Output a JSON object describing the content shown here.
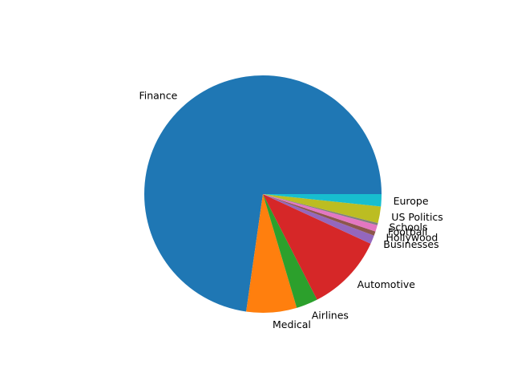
{
  "chart_data": {
    "type": "pie",
    "title": "",
    "start_angle_deg": 0,
    "direction": "counterclockwise",
    "legend": "none",
    "labels": [
      "Finance",
      "Medical",
      "Airlines",
      "Automotive",
      "Businesses",
      "Hollywood",
      "Football",
      "Schools",
      "US Politics",
      "Europe"
    ],
    "values": [
      74.2,
      7.0,
      3.0,
      10.8,
      1.2,
      0.6,
      0.9,
      0.3,
      2.3,
      1.7
    ],
    "colors": [
      "#1f77b4",
      "#ff7f0e",
      "#2ca02c",
      "#d62728",
      "#9467bd",
      "#8c564b",
      "#e377c2",
      "#7f7f7f",
      "#bcbd22",
      "#17becf"
    ]
  }
}
